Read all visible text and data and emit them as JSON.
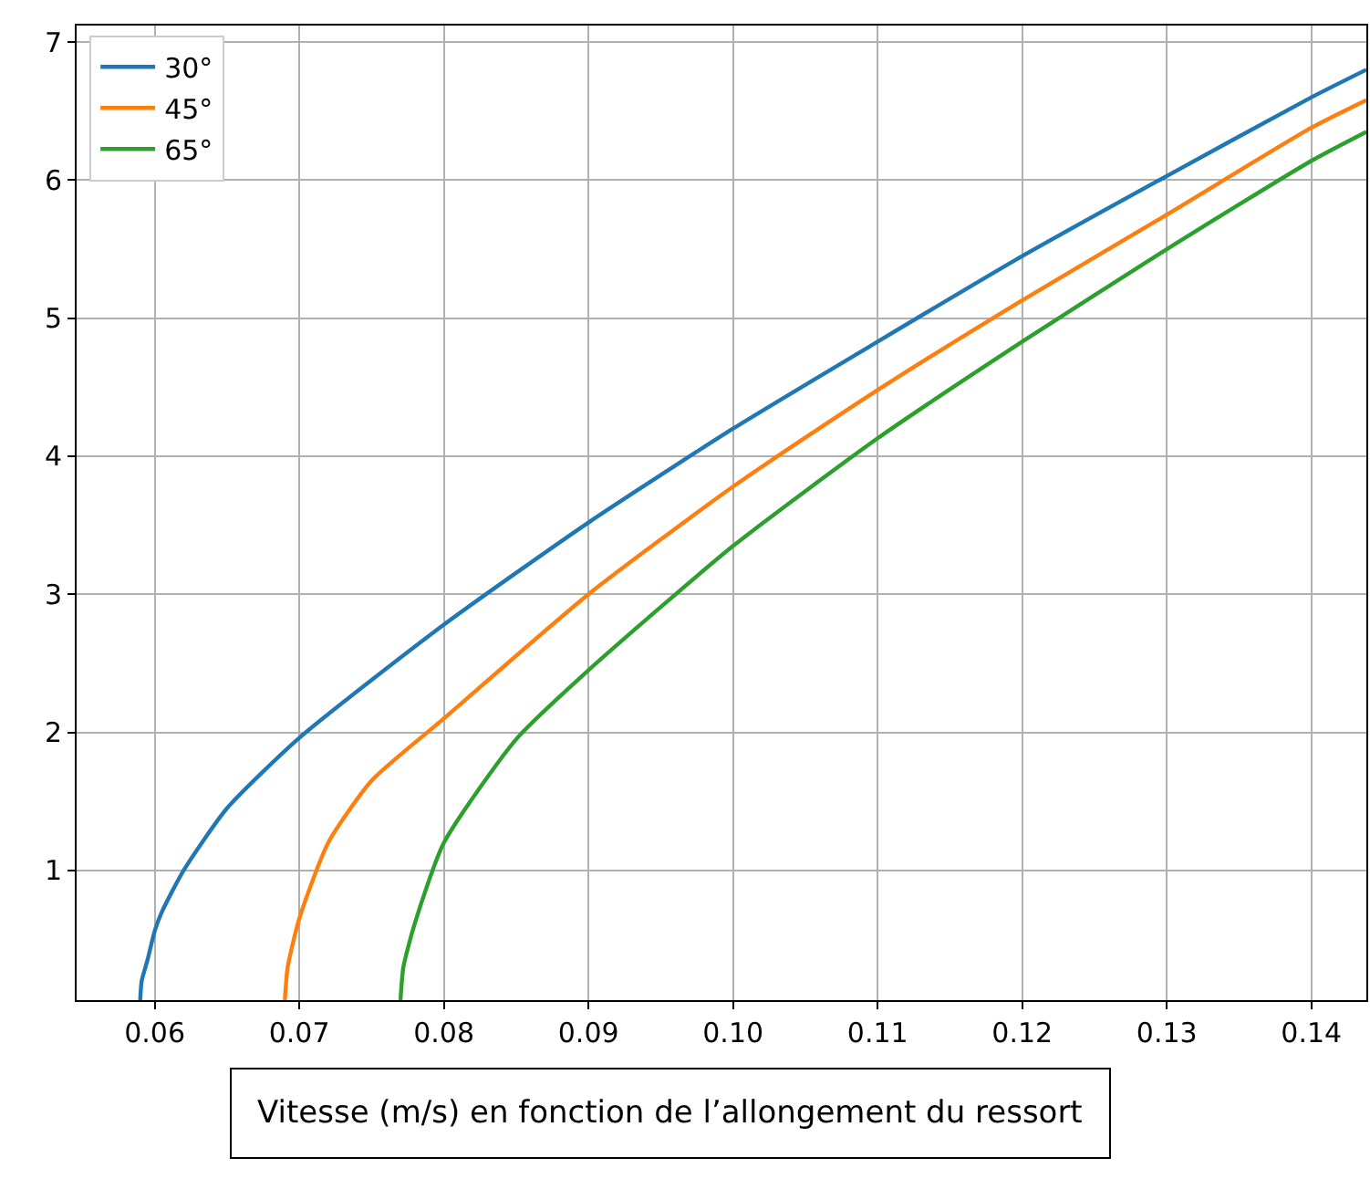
{
  "chart_data": {
    "type": "line",
    "xlabel": "Vitesse (m/s) en fonction de l’allongement du ressort",
    "xlim": [
      0.0546,
      0.1438
    ],
    "ylim": [
      0.06,
      7.12
    ],
    "xticks": [
      0.06,
      0.07,
      0.08,
      0.09,
      {
        "value": 0.1,
        "label": "0.10"
      },
      0.11,
      0.12,
      0.13,
      0.14
    ],
    "yticks": [
      1,
      2,
      3,
      4,
      5,
      6,
      7
    ],
    "grid": true,
    "legend": "top left",
    "line_style": "solid",
    "marker": "none",
    "series": [
      {
        "name": "30°",
        "color": "#1f77b4",
        "x": [
          0.059,
          0.0591,
          0.0595,
          0.06,
          0.0605,
          0.062,
          0.065,
          0.07,
          0.08,
          0.09,
          0.1,
          0.11,
          0.12,
          0.13,
          0.14,
          0.1438
        ],
        "values": [
          0.06,
          0.2,
          0.35,
          0.56,
          0.7,
          1.0,
          1.45,
          1.96,
          2.78,
          3.52,
          4.2,
          4.83,
          5.45,
          6.03,
          6.6,
          6.8
        ]
      },
      {
        "name": "45°",
        "color": "#ff7f0e",
        "x": [
          0.069,
          0.0692,
          0.07,
          0.072,
          0.075,
          0.08,
          0.09,
          0.1,
          0.11,
          0.12,
          0.13,
          0.14,
          0.1438
        ],
        "values": [
          0.06,
          0.3,
          0.65,
          1.2,
          1.65,
          2.1,
          3.0,
          3.78,
          4.48,
          5.13,
          5.75,
          6.38,
          6.58
        ]
      },
      {
        "name": "65°",
        "color": "#2ca02c",
        "x": [
          0.077,
          0.0772,
          0.078,
          0.08,
          0.085,
          0.09,
          0.1,
          0.11,
          0.12,
          0.13,
          0.14,
          0.1438
        ],
        "values": [
          0.06,
          0.3,
          0.62,
          1.2,
          1.95,
          2.45,
          3.35,
          4.13,
          4.83,
          5.5,
          6.14,
          6.35
        ]
      }
    ]
  }
}
